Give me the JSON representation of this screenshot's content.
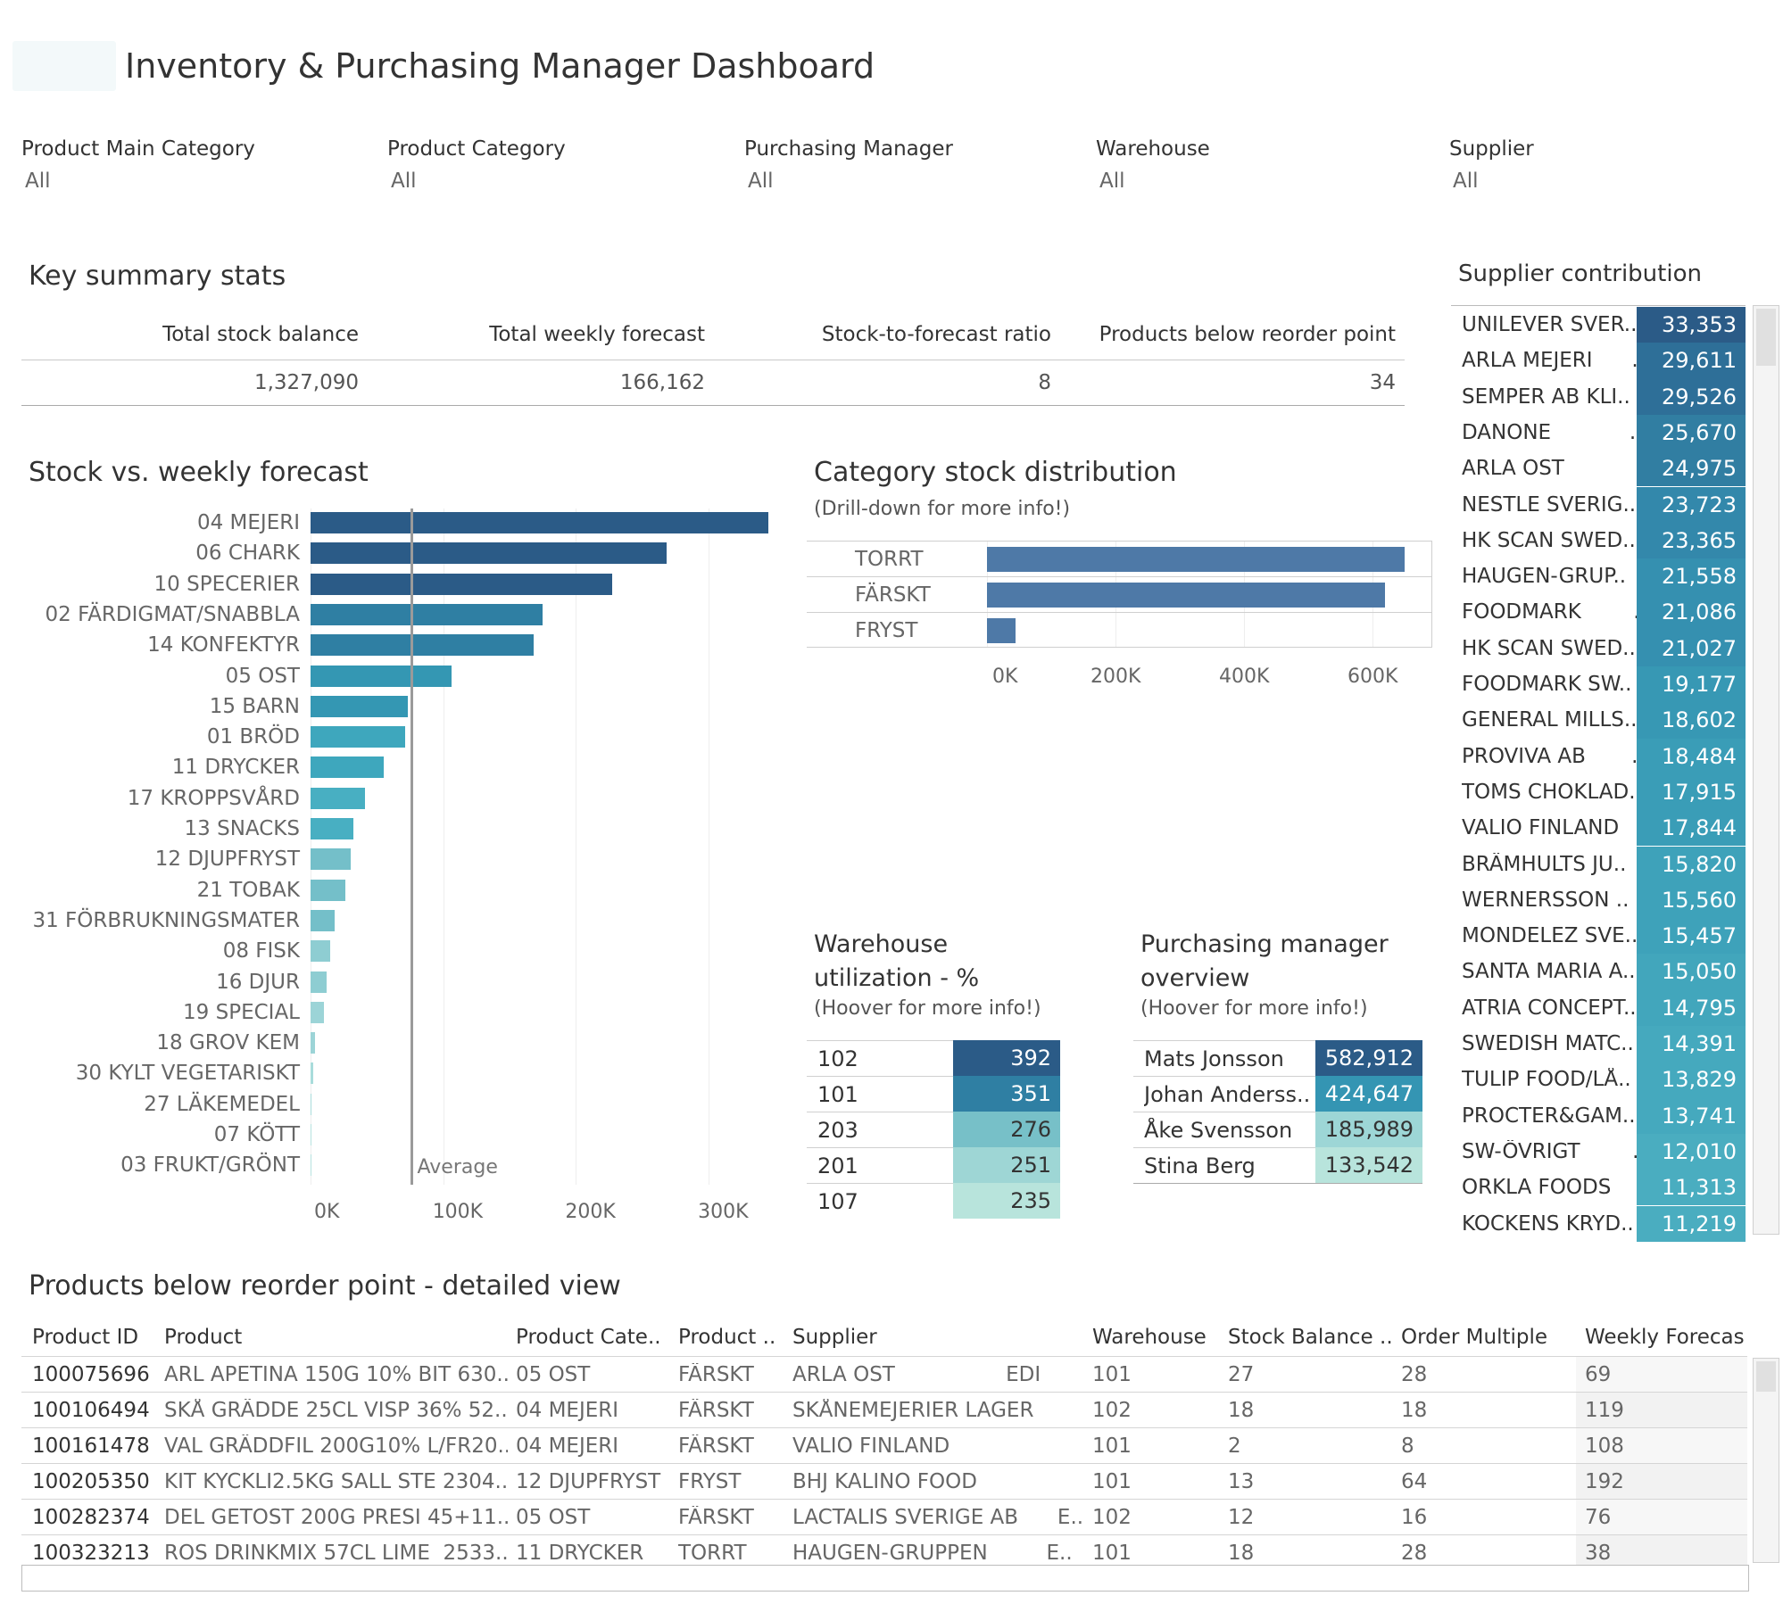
{
  "title": "Inventory & Purchasing Manager Dashboard",
  "filters": [
    {
      "label": "Product Main Category",
      "value": "All"
    },
    {
      "label": "Product Category",
      "value": "All"
    },
    {
      "label": "Purchasing Manager",
      "value": "All"
    },
    {
      "label": "Warehouse",
      "value": "All"
    },
    {
      "label": "Supplier",
      "value": "All"
    }
  ],
  "summary": {
    "title": "Key summary stats",
    "headers": [
      "Total stock balance",
      "Total weekly forecast",
      "Stock-to-forecast ratio",
      "Products below reorder point"
    ],
    "values": [
      "1,327,090",
      "166,162",
      "8",
      "34"
    ]
  },
  "stock_forecast": {
    "title": "Stock vs. weekly forecast",
    "average_label": "Average",
    "average_value": 75000,
    "axis_ticks": [
      "0K",
      "100K",
      "200K",
      "300K"
    ],
    "colors": [
      "#2b5b87",
      "#2f7fa3",
      "#3497b3",
      "#3ea7bd",
      "#48afc2",
      "#74bfc9",
      "#8ecdd2",
      "#9cd4d7",
      "#a9dcdb",
      "#b6e2df"
    ]
  },
  "chart_data": [
    {
      "type": "bar",
      "orientation": "horizontal",
      "title": "Stock vs. weekly forecast",
      "categories": [
        "04 MEJERI",
        "06 CHARK",
        "10 SPECERIER",
        "02 FÄRDIGMAT/SNABBLA",
        "14 KONFEKTYR",
        "05 OST",
        "15 BARN",
        "01 BRÖD",
        "11 DRYCKER",
        "17 KROPPSVÅRD",
        "13 SNACKS",
        "12 DJUPFRYST",
        "21 TOBAK",
        "31 FÖRBRUKNINGSMATER",
        "08 FISK",
        "16 DJUR",
        "19 SPECIAL",
        "18 GROV KEM",
        "30 KYLT VEGETARISKT",
        "27 LÄKEMEDEL",
        "07 KÖTT",
        "03 FRUKT/GRÖNT"
      ],
      "values": [
        345000,
        268000,
        227000,
        175000,
        168000,
        106000,
        73000,
        71000,
        55000,
        41000,
        32000,
        30000,
        26000,
        18000,
        15000,
        12000,
        10000,
        3500,
        2000,
        1000,
        700,
        300
      ],
      "reference_line": {
        "label": "Average",
        "value": 75000
      },
      "xlim": [
        0,
        360000
      ],
      "x_ticks": [
        "0K",
        "100K",
        "200K",
        "300K"
      ]
    },
    {
      "type": "bar",
      "orientation": "horizontal",
      "title": "Category stock distribution",
      "subtitle": "(Drill-down for more info!)",
      "categories": [
        "TORRT",
        "FÄRSKT",
        "FRYST"
      ],
      "values": [
        650000,
        620000,
        45000
      ],
      "xlim": [
        0,
        700000
      ],
      "x_ticks": [
        "0K",
        "200K",
        "400K",
        "600K"
      ]
    },
    {
      "type": "table",
      "title": "Warehouse utilization - %",
      "subtitle": "(Hoover for more info!)",
      "rows": [
        [
          "102",
          392
        ],
        [
          "101",
          351
        ],
        [
          "203",
          276
        ],
        [
          "201",
          251
        ],
        [
          "107",
          235
        ]
      ]
    },
    {
      "type": "table",
      "title": "Purchasing manager overview",
      "subtitle": "(Hoover for more info!)",
      "rows": [
        [
          "Mats Jonsson",
          "582,912"
        ],
        [
          "Johan Anderss..",
          "424,647"
        ],
        [
          "Åke Svensson",
          "185,989"
        ],
        [
          "Stina Berg",
          "133,542"
        ]
      ]
    },
    {
      "type": "table",
      "title": "Supplier contribution",
      "rows": [
        [
          "UNILEVER SVER..",
          "33,353"
        ],
        [
          "ARLA MEJERI ..",
          "29,611"
        ],
        [
          "SEMPER AB KLI..",
          "29,526"
        ],
        [
          "DANONE ..",
          "25,670"
        ],
        [
          "ARLA OST ..",
          "24,975"
        ],
        [
          "NESTLE SVERIG..",
          "23,723"
        ],
        [
          "HK SCAN SWED..",
          "23,365"
        ],
        [
          "HAUGEN-GRUP..",
          "21,558"
        ],
        [
          "FOODMARK ..",
          "21,086"
        ],
        [
          "HK SCAN SWED..",
          "21,027"
        ],
        [
          "FOODMARK SW..",
          "19,177"
        ],
        [
          "GENERAL MILLS..",
          "18,602"
        ],
        [
          "PROVIVA AB ..",
          "18,484"
        ],
        [
          "TOMS CHOKLAD..",
          "17,915"
        ],
        [
          "VALIO FINLAND",
          "17,844"
        ],
        [
          "BRÄMHULTS JU..",
          "15,820"
        ],
        [
          "WERNERSSON ..",
          "15,560"
        ],
        [
          "MONDELEZ SVE..",
          "15,457"
        ],
        [
          "SANTA MARIA A..",
          "15,050"
        ],
        [
          "ATRIA CONCEPT..",
          "14,795"
        ],
        [
          "SWEDISH MATC..",
          "14,391"
        ],
        [
          "TULIP FOOD/LÅ..",
          "13,829"
        ],
        [
          "PROCTER&GAM..",
          "13,741"
        ],
        [
          "SW-ÖVRIGT ..",
          "12,010"
        ],
        [
          "ORKLA FOODS ..",
          "11,313"
        ],
        [
          "KOCKENS KRYD..",
          "11,219"
        ]
      ]
    }
  ],
  "category_dist": {
    "title": "Category stock distribution",
    "subtitle": "(Drill-down for more info!)",
    "color": "#4e79a7",
    "axis_ticks": [
      "0K",
      "200K",
      "400K",
      "600K"
    ]
  },
  "warehouse": {
    "title_line1": "Warehouse",
    "title_line2": "utilization - %",
    "subtitle": "(Hoover for more info!)",
    "rows": [
      {
        "id": "102",
        "value": "392",
        "bg": "#2b5b87",
        "fg": "#ffffff"
      },
      {
        "id": "101",
        "value": "351",
        "bg": "#2f7fa3",
        "fg": "#ffffff"
      },
      {
        "id": "203",
        "value": "276",
        "bg": "#77c0c8",
        "fg": "#333333"
      },
      {
        "id": "201",
        "value": "251",
        "bg": "#9ed6d5",
        "fg": "#333333"
      },
      {
        "id": "107",
        "value": "235",
        "bg": "#b8e4dc",
        "fg": "#333333"
      }
    ]
  },
  "managers": {
    "title_line1": "Purchasing manager",
    "title_line2": "overview",
    "subtitle": "(Hoover for more info!)",
    "rows": [
      {
        "name": "Mats Jonsson",
        "value": "582,912",
        "bg": "#2b5b87",
        "fg": "#ffffff"
      },
      {
        "name": "Johan Anderss..",
        "value": "424,647",
        "bg": "#3495b3",
        "fg": "#ffffff"
      },
      {
        "name": "Åke Svensson",
        "value": "185,989",
        "bg": "#9dd6d6",
        "fg": "#333333"
      },
      {
        "name": "Stina Berg",
        "value": "133,542",
        "bg": "#b8e4dc",
        "fg": "#333333"
      }
    ]
  },
  "suppliers": {
    "title": "Supplier contribution",
    "rows": [
      {
        "name": "UNILEVER SVER..",
        "value": "33,353",
        "bg": "#2b5b87"
      },
      {
        "name": "ARLA MEJERI      ..",
        "value": "29,611",
        "bg": "#2e6f98"
      },
      {
        "name": "SEMPER AB KLI..",
        "value": "29,526",
        "bg": "#2e6f98"
      },
      {
        "name": "DANONE            ..",
        "value": "25,670",
        "bg": "#317ea2"
      },
      {
        "name": "ARLA OST           ..",
        "value": "24,975",
        "bg": "#317ea2"
      },
      {
        "name": "NESTLE SVERIG..",
        "value": "23,723",
        "bg": "#3388ab"
      },
      {
        "name": "HK SCAN SWED..",
        "value": "23,365",
        "bg": "#3388ab"
      },
      {
        "name": "HAUGEN-GRUP..",
        "value": "21,558",
        "bg": "#3590b0"
      },
      {
        "name": "FOODMARK        ..",
        "value": "21,086",
        "bg": "#3590b0"
      },
      {
        "name": "HK SCAN SWED..",
        "value": "21,027",
        "bg": "#3590b0"
      },
      {
        "name": "FOODMARK SW..",
        "value": "19,177",
        "bg": "#3798b4"
      },
      {
        "name": "GENERAL MILLS..",
        "value": "18,602",
        "bg": "#3798b4"
      },
      {
        "name": "PROVIVA AB       ..",
        "value": "18,484",
        "bg": "#3a9db7"
      },
      {
        "name": "TOMS CHOKLAD..",
        "value": "17,915",
        "bg": "#3a9db7"
      },
      {
        "name": "VALIO FINLAND",
        "value": "17,844",
        "bg": "#3a9db7"
      },
      {
        "name": "BRÄMHULTS JU..",
        "value": "15,820",
        "bg": "#3ea2ba"
      },
      {
        "name": "WERNERSSON ..",
        "value": "15,560",
        "bg": "#3ea2ba"
      },
      {
        "name": "MONDELEZ SVE..",
        "value": "15,457",
        "bg": "#3ea2ba"
      },
      {
        "name": "SANTA MARIA A..",
        "value": "15,050",
        "bg": "#42a6bc"
      },
      {
        "name": "ATRIA CONCEPT..",
        "value": "14,795",
        "bg": "#42a6bc"
      },
      {
        "name": "SWEDISH MATC..",
        "value": "14,391",
        "bg": "#45a9be"
      },
      {
        "name": "TULIP FOOD/LÅ..",
        "value": "13,829",
        "bg": "#45a9be"
      },
      {
        "name": "PROCTER&GAM..",
        "value": "13,741",
        "bg": "#45a9be"
      },
      {
        "name": "SW-ÖVRIGT        ..",
        "value": "12,010",
        "bg": "#4aadc0"
      },
      {
        "name": "ORKLA FOODS    ..",
        "value": "11,313",
        "bg": "#4aadc0"
      },
      {
        "name": "KOCKENS KRYD..",
        "value": "11,219",
        "bg": "#4aadc0"
      }
    ]
  },
  "details": {
    "title": "Products below reorder point - detailed view",
    "headers": [
      "Product ID",
      "Product",
      "Product Cate..",
      "Product ..",
      "Supplier",
      "Warehouse",
      "Stock Balance ..",
      "Order Multiple",
      "Weekly Forecas"
    ],
    "rows": [
      [
        "100075696",
        "ARL APETINA 150G 10% BIT 630..",
        "05 OST",
        "FÄRSKT",
        "ARLA OST                 EDI",
        "101",
        "27",
        "28",
        "69"
      ],
      [
        "100106494",
        "SKÅ GRÄDDE 25CL VISP 36% 52..",
        "04 MEJERI",
        "FÄRSKT",
        "SKÅNEMEJERIER LAGER",
        "102",
        "18",
        "18",
        "119"
      ],
      [
        "100161478",
        "VAL GRÄDDFIL 200G10% L/FR20..",
        "04 MEJERI",
        "FÄRSKT",
        "VALIO FINLAND",
        "101",
        "2",
        "8",
        "108"
      ],
      [
        "100205350",
        "KIT KYCKLI2.5KG SALL STE 2304..",
        "12 DJUPFRYST",
        "FRYST",
        "BHJ KALINO FOOD",
        "101",
        "13",
        "64",
        "192"
      ],
      [
        "100282374",
        "DEL GETOST 200G PRESI 45+11..",
        "05 OST",
        "FÄRSKT",
        "LACTALIS SVERIGE AB      E..",
        "102",
        "12",
        "16",
        "76"
      ],
      [
        "100323213",
        "ROS DRINKMIX 57CL LIME  2533..",
        "11 DRYCKER",
        "TORRT",
        "HAUGEN-GRUPPEN         E..",
        "101",
        "18",
        "28",
        "38"
      ]
    ]
  }
}
